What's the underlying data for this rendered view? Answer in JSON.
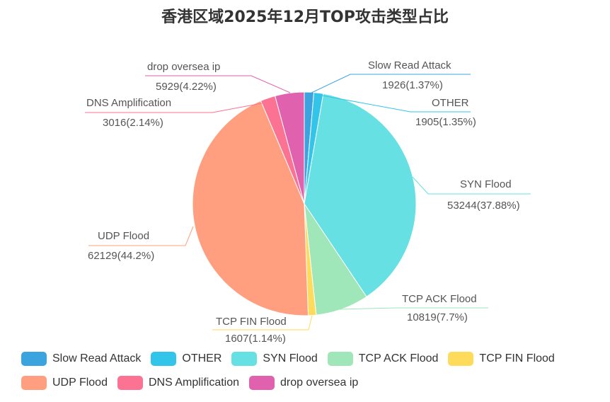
{
  "chart_data": {
    "type": "pie",
    "title": "香港区域2025年12月TOP攻击类型占比",
    "series": [
      {
        "name": "Slow Read Attack",
        "value": 1926,
        "percent": "1.37%",
        "color": "#3ba3de"
      },
      {
        "name": "OTHER",
        "value": 1905,
        "percent": "1.35%",
        "color": "#32c5e9"
      },
      {
        "name": "SYN Flood",
        "value": 53244,
        "percent": "37.88%",
        "color": "#67e0e3"
      },
      {
        "name": "TCP ACK Flood",
        "value": 10819,
        "percent": "7.7%",
        "color": "#9fe6b8"
      },
      {
        "name": "TCP FIN Flood",
        "value": 1607,
        "percent": "1.14%",
        "color": "#ffdb5c"
      },
      {
        "name": "UDP Flood",
        "value": 62129,
        "percent": "44.2%",
        "color": "#ff9f7f"
      },
      {
        "name": "DNS Amplification",
        "value": 3016,
        "percent": "2.14%",
        "color": "#fb7293"
      },
      {
        "name": "drop oversea ip",
        "value": 5929,
        "percent": "4.22%",
        "color": "#e062ae"
      }
    ],
    "legend": "bottom"
  }
}
